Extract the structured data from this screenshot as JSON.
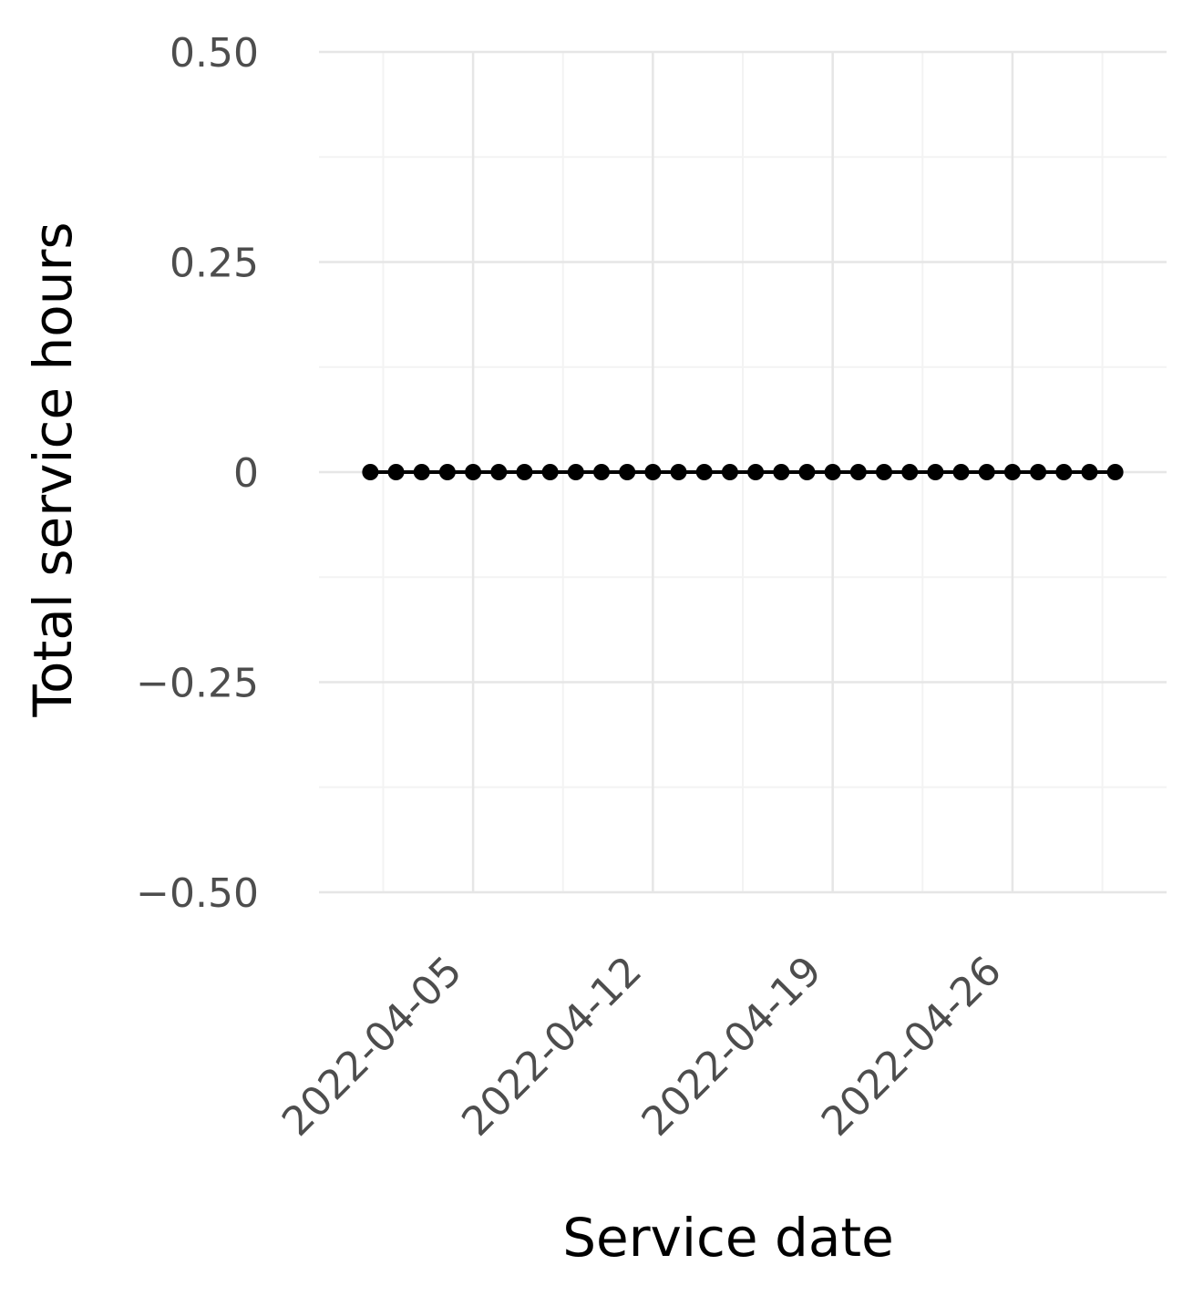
{
  "chart_data": {
    "type": "line",
    "xlabel": "Service date",
    "ylabel": "Total service hours",
    "x_ticks": [
      "2022-04-05",
      "2022-04-12",
      "2022-04-19",
      "2022-04-26"
    ],
    "y_ticks": [
      "−0.50",
      "−0.25",
      "0",
      "0.25",
      "0.50"
    ],
    "y_tick_values": [
      -0.5,
      -0.25,
      0,
      0.25,
      0.5
    ],
    "ylim": [
      -0.5,
      0.5
    ],
    "xlim": [
      "2022-03-30",
      "2022-05-02"
    ],
    "grid": true,
    "legend": "none",
    "series": [
      {
        "x": [
          "2022-04-01",
          "2022-04-02",
          "2022-04-03",
          "2022-04-04",
          "2022-04-05",
          "2022-04-06",
          "2022-04-07",
          "2022-04-08",
          "2022-04-09",
          "2022-04-10",
          "2022-04-11",
          "2022-04-12",
          "2022-04-13",
          "2022-04-14",
          "2022-04-15",
          "2022-04-16",
          "2022-04-17",
          "2022-04-18",
          "2022-04-19",
          "2022-04-20",
          "2022-04-21",
          "2022-04-22",
          "2022-04-23",
          "2022-04-24",
          "2022-04-25",
          "2022-04-26",
          "2022-04-27",
          "2022-04-28",
          "2022-04-29",
          "2022-04-30"
        ],
        "values": [
          0,
          0,
          0,
          0,
          0,
          0,
          0,
          0,
          0,
          0,
          0,
          0,
          0,
          0,
          0,
          0,
          0,
          0,
          0,
          0,
          0,
          0,
          0,
          0,
          0,
          0,
          0,
          0,
          0,
          0
        ],
        "color": "#000000"
      }
    ]
  }
}
